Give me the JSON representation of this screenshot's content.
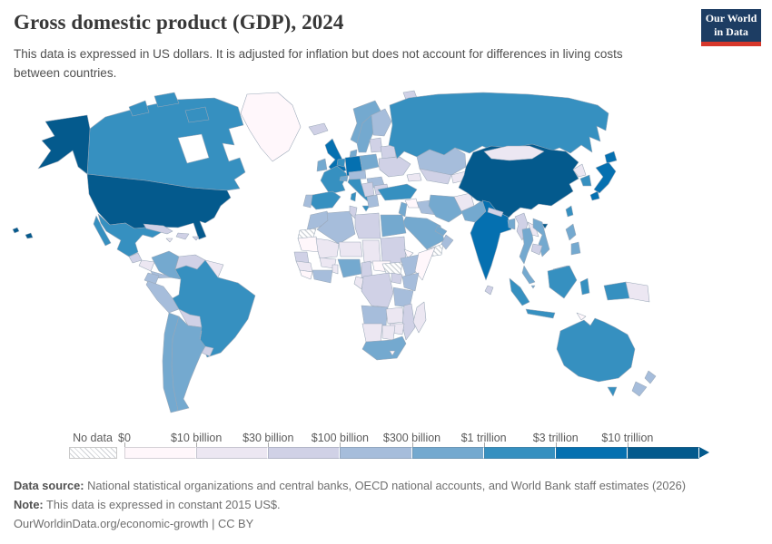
{
  "header": {
    "title": "Gross domestic product (GDP), 2024",
    "subtitle": "This data is expressed in US dollars. It is adjusted for inflation but does not account for differences in living costs between countries.",
    "logo": {
      "line1": "Our World",
      "line2": "in Data",
      "bg": "#1d3d63",
      "stripe": "#d7372b"
    }
  },
  "legend": {
    "no_data_label": "No data",
    "bins": [
      {
        "label": "$0",
        "color": "#fff7fb"
      },
      {
        "label": "$10 billion",
        "color": "#ece7f2"
      },
      {
        "label": "$30 billion",
        "color": "#d0d1e6"
      },
      {
        "label": "$100 billion",
        "color": "#a6bddb"
      },
      {
        "label": "$300 billion",
        "color": "#74a9cf"
      },
      {
        "label": "$1 trillion",
        "color": "#3690c0"
      },
      {
        "label": "$3 trillion",
        "color": "#0570b0"
      },
      {
        "label": "$10 trillion",
        "color": "#045a8d"
      }
    ]
  },
  "footer": {
    "source_label": "Data source:",
    "source_text": " National statistical organizations and central banks, OECD national accounts, and World Bank staff estimates (2026)",
    "note_label": "Note:",
    "note_text": " This data is expressed in constant 2015 US$.",
    "link": "OurWorldinData.org/economic-growth | CC BY"
  },
  "chart_data": {
    "type": "heatmap",
    "subtype": "world-choropleth-map",
    "title": "Gross domestic product (GDP), 2024",
    "unit": "constant 2015 US$",
    "legend_position": "bottom",
    "bin_edges": [
      "$0",
      "$10 billion",
      "$30 billion",
      "$100 billion",
      "$300 billion",
      "$1 trillion",
      "$3 trillion",
      "$10 trillion"
    ],
    "bin_colors": [
      "#fff7fb",
      "#ece7f2",
      "#d0d1e6",
      "#a6bddb",
      "#74a9cf",
      "#3690c0",
      "#0570b0",
      "#045a8d"
    ],
    "no_data_key": "nd",
    "values": {
      "canada": 5,
      "greenland": 0,
      "usa": 7,
      "mexico": 5,
      "guatemala": 2,
      "honduras": 1,
      "costapanama": 3,
      "cuba": 2,
      "hispaniola": 2,
      "jamaica": 1,
      "puertorico": 2,
      "colombia": 4,
      "venezuela": 2,
      "guyanas": 1,
      "ecuador": 3,
      "peru": 3,
      "brazil": 5,
      "bolivia": 2,
      "paraguay": 2,
      "uruguay": 2,
      "argentina": 4,
      "chile": 4,
      "iceland": 2,
      "norway": 4,
      "sweden": 4,
      "finland": 3,
      "uk": 6,
      "ireland": 4,
      "denmark": 4,
      "germany": 6,
      "benelux": 5,
      "france": 5,
      "spain": 5,
      "portugal": 3,
      "italy": 5,
      "switzerland": 4,
      "austriacz": 3,
      "poland": 4,
      "baltics": 2,
      "belarus": 2,
      "ukraine": 2,
      "romania": 3,
      "balkans": 2,
      "greece": 3,
      "bulgaria": 2,
      "svalbard": 2,
      "russia": 5,
      "kazakhstan": 3,
      "uzbekistan": 2,
      "turkmenistan": 1,
      "caucasus": 1,
      "turkey": 5,
      "syria": 0,
      "levant": 4,
      "iraq": 3,
      "iran": 4,
      "saudi": 4,
      "yemen": "nd",
      "oman": 3,
      "gulf": 4,
      "afghanistan": 1,
      "pakistan": 4,
      "india": 6,
      "srilanka": 2,
      "nepal": 2,
      "bangladesh": 4,
      "myanmar": 2,
      "thailand": 4,
      "laos": 1,
      "vietnam": 4,
      "cambodia": 2,
      "malaysia": 4,
      "singapore": 4,
      "china": 7,
      "mongolia": 1,
      "nkorea": 1,
      "skorea": 5,
      "japan": 6,
      "taiwan": 5,
      "philippines": 4,
      "indonesia": 5,
      "png": 1,
      "timor": 0,
      "australia": 5,
      "nz": 3,
      "morocco": 3,
      "wsahara": "nd",
      "algeria": 3,
      "tunisia": 2,
      "libya": 2,
      "egypt": 4,
      "mauritania": 0,
      "mali": 1,
      "niger": 1,
      "chad": 1,
      "sudan": 2,
      "eritrea": 0,
      "senegal": 2,
      "guinea": 1,
      "sierraleone": 0,
      "burkina": 1,
      "ghana": 3,
      "togo": 1,
      "nigeria": 4,
      "cameroon": 2,
      "car": 0,
      "ssudan": "nd",
      "ethiopia": 3,
      "somalia": 0,
      "kenya": 3,
      "uganda": 2,
      "drc": 2,
      "gabon": 1,
      "tanzania": 3,
      "angola": 3,
      "zambia": 1,
      "mozambique": 2,
      "zimbabwe": 1,
      "namibia": 1,
      "botswana": 1,
      "southafrica": 4,
      "lesotho": 0,
      "madagascar": 1
    }
  }
}
